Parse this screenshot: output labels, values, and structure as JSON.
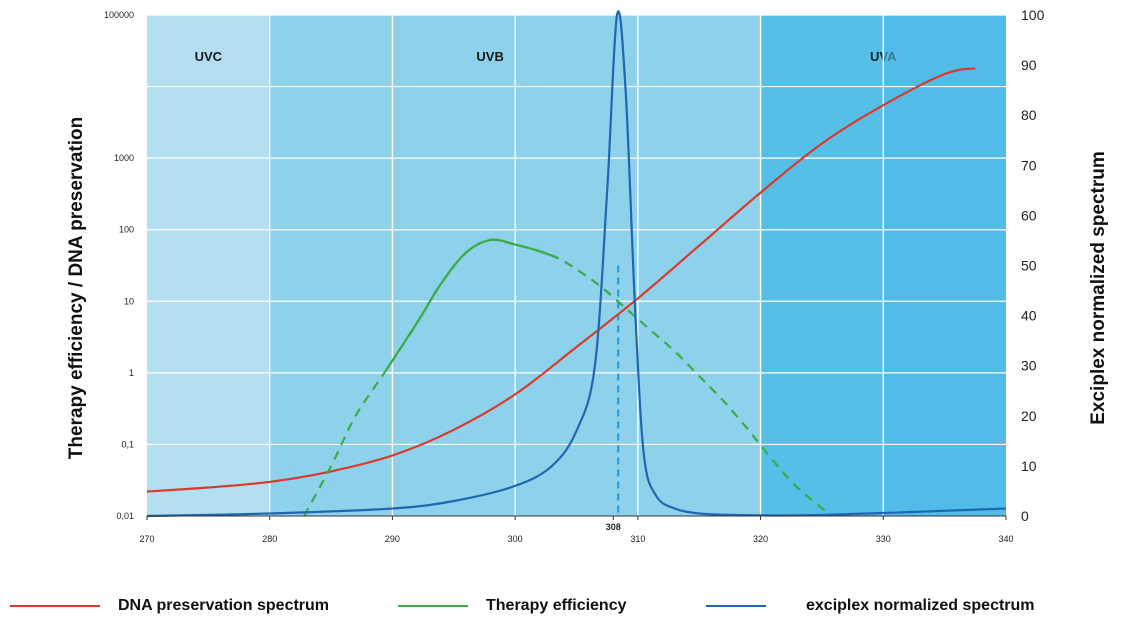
{
  "chart_data": {
    "type": "line",
    "x_ticks": [
      "270",
      "280",
      "290",
      "300",
      "308",
      "310",
      "320",
      "330",
      "340"
    ],
    "x_tick_values": [
      270,
      280,
      290,
      300,
      308,
      310,
      320,
      330,
      340
    ],
    "xlim": [
      270,
      340
    ],
    "left_axis": {
      "label": "Therapy efficiency / DNA preservation",
      "scale": "log",
      "ylim": [
        0.01,
        100000
      ],
      "tick_labels": [
        "0,01",
        "0,1",
        "1",
        "10",
        "100",
        "1000",
        "100000"
      ],
      "tick_values": [
        0.01,
        0.1,
        1,
        10,
        100,
        1000,
        100000
      ]
    },
    "right_axis": {
      "label": "Exciplex normalized spectrum",
      "ylim": [
        0,
        100
      ],
      "tick_labels": [
        "0",
        "10",
        "20",
        "30",
        "40",
        "50",
        "60",
        "70",
        "80",
        "90",
        "100"
      ]
    },
    "regions": [
      {
        "label": "UVC",
        "range": [
          270,
          280
        ],
        "color": "#b3dff0"
      },
      {
        "label": "UVB",
        "range": [
          280,
          320
        ],
        "color": "#8dd1ea"
      },
      {
        "label": "UVA",
        "range": [
          320,
          340
        ],
        "color": "#55bfe8"
      }
    ],
    "series": [
      {
        "name": "DNA preservation spectrum",
        "axis": "left",
        "color": "#d93a2c",
        "x": [
          270,
          275,
          280,
          285,
          290,
          295,
          300,
          305,
          310,
          315,
          320,
          325,
          330,
          335,
          337.5
        ],
        "y": [
          0.022,
          0.025,
          0.03,
          0.042,
          0.07,
          0.16,
          0.5,
          2.3,
          11,
          60,
          330,
          1600,
          5500,
          15000,
          18000
        ]
      },
      {
        "name": "Therapy efficiency",
        "axis": "left",
        "color": "#3aab45",
        "dashed_segments": [
          [
            282.8,
            289.5
          ],
          [
            303.5,
            325.8
          ]
        ],
        "x": [
          282.8,
          285,
          287,
          289.5,
          292,
          294,
          296,
          298,
          300,
          302,
          303.5,
          305,
          307,
          309,
          311,
          313,
          315,
          317,
          319,
          321,
          323,
          325.8
        ],
        "y": [
          0.01,
          0.05,
          0.25,
          1.1,
          5,
          18,
          48,
          72,
          62,
          50,
          40,
          28,
          16,
          8,
          4,
          2,
          0.9,
          0.4,
          0.16,
          0.06,
          0.025,
          0.01
        ]
      },
      {
        "name": "exciplex normalized spectrum",
        "axis": "right",
        "color": "#1f67b3",
        "x": [
          270,
          280,
          290,
          295,
          300,
          303,
          305,
          306.5,
          307.5,
          308.3,
          309,
          309.8,
          310.5,
          311.5,
          313,
          315,
          318,
          325,
          340
        ],
        "y": [
          0,
          0.5,
          1.5,
          3,
          6,
          10,
          17,
          30,
          65,
          100,
          85,
          40,
          12,
          4,
          1.5,
          0.5,
          0.2,
          0.2,
          1.5
        ]
      }
    ],
    "annotations": [
      {
        "text": "308",
        "x": 308
      }
    ]
  },
  "legend": [
    {
      "label": "DNA preservation spectrum",
      "color": "#d93a2c"
    },
    {
      "label": "Therapy efficiency",
      "color": "#3aab45"
    },
    {
      "label": "exciplex normalized spectrum",
      "color": "#1f67b3"
    }
  ]
}
